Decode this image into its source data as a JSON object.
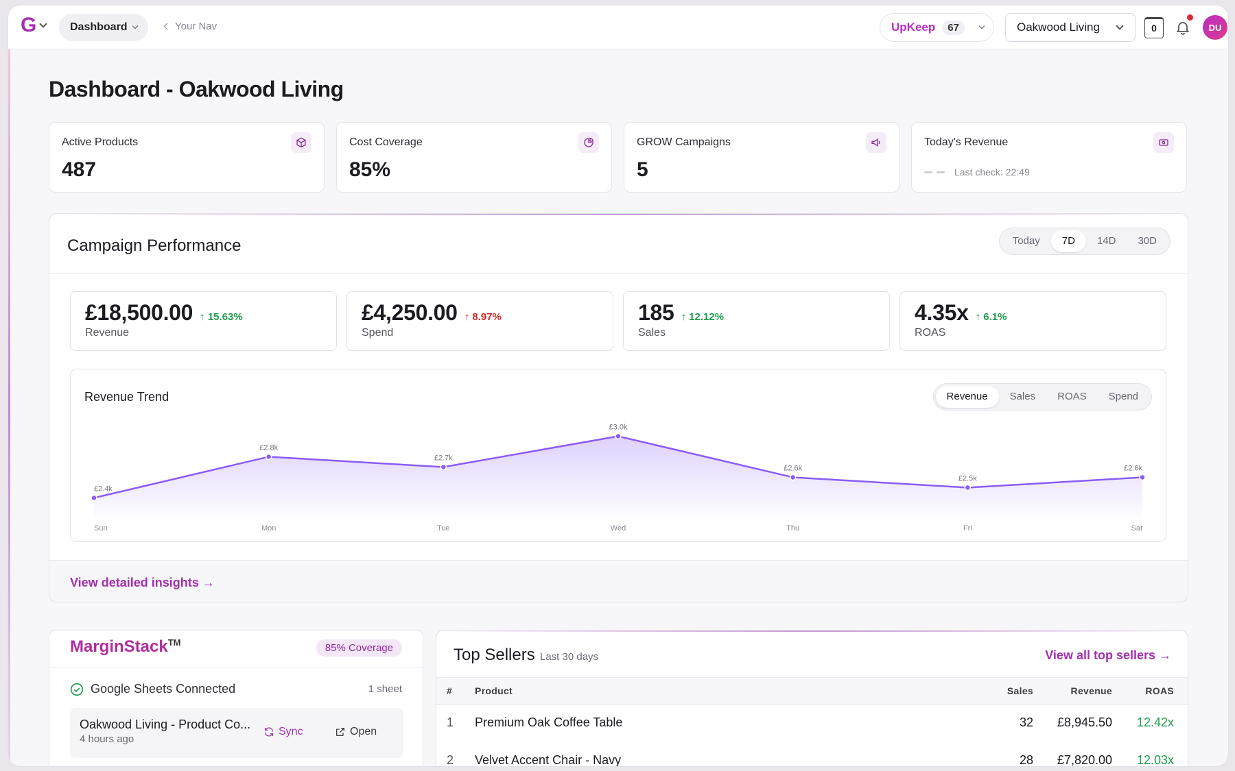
{
  "header": {
    "logo": "G",
    "nav_dropdown": "Dashboard",
    "back_nav": "Your Nav",
    "upkeep_label": "UpKeep",
    "upkeep_count": "67",
    "store": "Oakwood Living",
    "counter": "0",
    "avatar_initials": "DU"
  },
  "page_title": "Dashboard - Oakwood Living",
  "stats": [
    {
      "label": "Active Products",
      "value": "487",
      "icon": "cube-icon"
    },
    {
      "label": "Cost Coverage",
      "value": "85%",
      "icon": "pie-chart-icon"
    },
    {
      "label": "GROW Campaigns",
      "value": "5",
      "icon": "megaphone-icon"
    },
    {
      "label": "Today's Revenue",
      "value": "",
      "last_check": "Last check: 22:49",
      "icon": "cash-icon"
    }
  ],
  "campaign": {
    "title": "Campaign Performance",
    "ranges": [
      "Today",
      "7D",
      "14D",
      "30D"
    ],
    "active_range": "7D",
    "metrics": [
      {
        "value": "£18,500.00",
        "delta": "15.63%",
        "label": "Revenue",
        "status": "good"
      },
      {
        "value": "£4,250.00",
        "delta": "8.97%",
        "label": "Spend",
        "status": "bad"
      },
      {
        "value": "185",
        "delta": "12.12%",
        "label": "Sales",
        "status": "good"
      },
      {
        "value": "4.35x",
        "delta": "6.1%",
        "label": "ROAS",
        "status": "good"
      }
    ],
    "chart_title": "Revenue Trend",
    "chart_tabs": [
      "Revenue",
      "Sales",
      "ROAS",
      "Spend"
    ],
    "active_chart_tab": "Revenue",
    "footer_link": "View detailed insights →"
  },
  "chart_data": {
    "type": "area",
    "categories": [
      "Sun",
      "Mon",
      "Tue",
      "Wed",
      "Thu",
      "Fri",
      "Sat"
    ],
    "series": [
      {
        "name": "Revenue",
        "values": [
          2.4,
          2.8,
          2.7,
          3.0,
          2.6,
          2.5,
          2.6
        ]
      }
    ],
    "data_labels": [
      "£2.4k",
      "£2.8k",
      "£2.7k",
      "£3.0k",
      "£2.6k",
      "£2.5k",
      "£2.6k"
    ],
    "ylim": [
      2.25,
      3.05
    ],
    "color": "#8b5cf6",
    "grid": false
  },
  "margin_stack": {
    "brand": "MarginStack",
    "trademark": "TM",
    "coverage_badge": "85% Coverage",
    "connected_text": "Google Sheets Connected",
    "sheet_count": "1 sheet",
    "file_name": "Oakwood Living - Product Co...",
    "file_time": "4 hours ago",
    "sync_label": "Sync",
    "open_label": "Open"
  },
  "top_sellers": {
    "title": "Top Sellers",
    "subtitle": "Last 30 days",
    "view_all": "View all top sellers →",
    "columns": [
      "#",
      "Product",
      "Sales",
      "Revenue",
      "ROAS"
    ],
    "rows": [
      {
        "rank": "1",
        "product": "Premium Oak Coffee Table",
        "sales": "32",
        "revenue": "£8,945.50",
        "roas": "12.42x"
      },
      {
        "rank": "2",
        "product": "Velvet Accent Chair - Navy",
        "sales": "28",
        "revenue": "£7,820.00",
        "roas": "12.03x"
      }
    ]
  },
  "colors": {
    "accent": "#a52fb0",
    "positive": "#1f9d4d",
    "negative": "#d02a2a",
    "chart_line": "#8b5cf6"
  }
}
